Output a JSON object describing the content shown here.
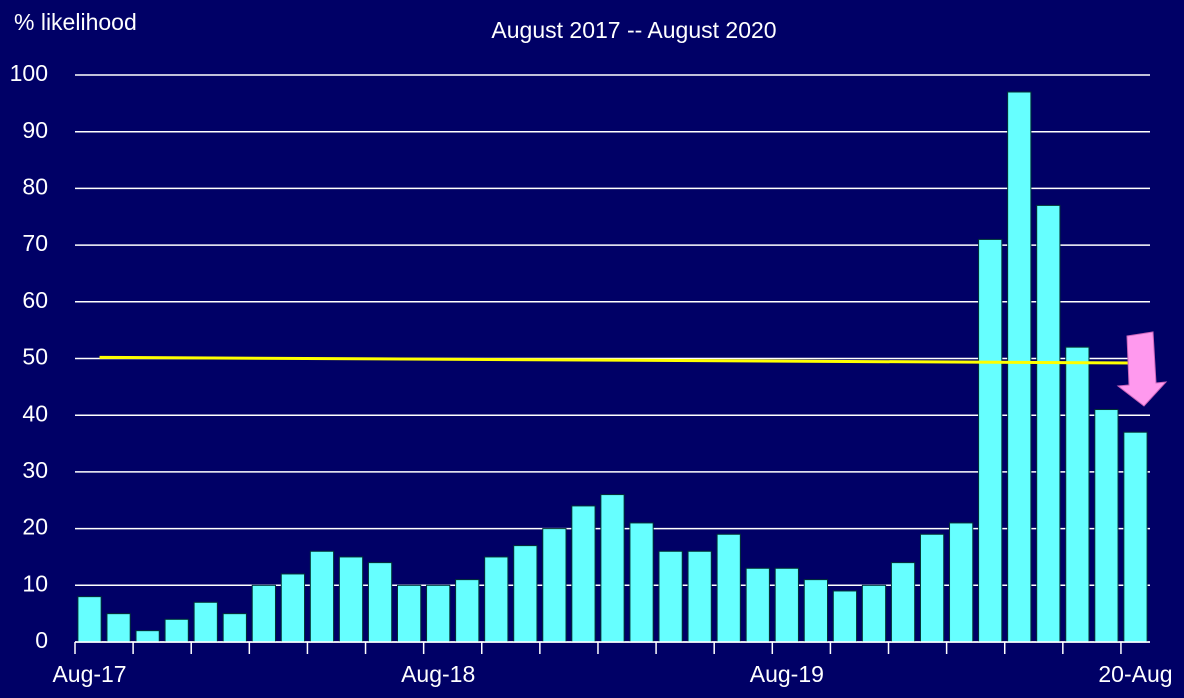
{
  "chart_data": {
    "type": "bar",
    "title": "August 2017 -- August 2020",
    "y_axis_label": "% likelihood",
    "categories": [
      "Aug-17",
      null,
      null,
      null,
      null,
      null,
      null,
      null,
      null,
      null,
      null,
      null,
      "Aug-18",
      null,
      null,
      null,
      null,
      null,
      null,
      null,
      null,
      null,
      null,
      null,
      "Aug-19",
      null,
      null,
      null,
      null,
      null,
      null,
      null,
      null,
      null,
      null,
      null,
      "20-Aug"
    ],
    "values": [
      8,
      5,
      2,
      4,
      7,
      5,
      10,
      12,
      16,
      15,
      14,
      10,
      10,
      11,
      15,
      17,
      20,
      24,
      26,
      21,
      16,
      16,
      19,
      13,
      13,
      11,
      9,
      10,
      14,
      19,
      21,
      71,
      97,
      77,
      52,
      41,
      37
    ],
    "color": "#66ffff",
    "trend": {
      "color": "#ffff00",
      "values": [
        50.2,
        49.2
      ]
    },
    "ylim": [
      0,
      100
    ],
    "yticks": [
      0,
      10,
      20,
      30,
      40,
      50,
      60,
      70,
      80,
      90,
      100
    ],
    "grid": true
  }
}
